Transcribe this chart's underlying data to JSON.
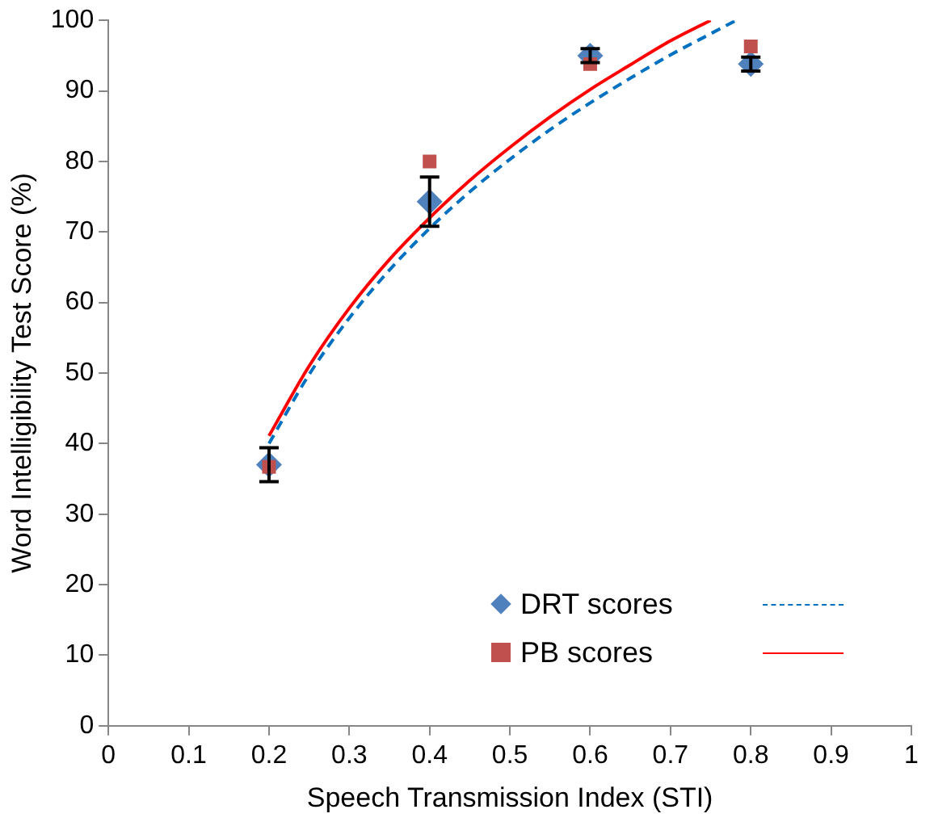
{
  "chart_data": {
    "type": "scatter",
    "xlabel": "Speech Transmission Index (STI)",
    "ylabel": "Word Intelligibility Test Score (%)",
    "xlim": [
      0,
      1
    ],
    "xticks": [
      0,
      0.1,
      0.2,
      0.3,
      0.4,
      0.5,
      0.6,
      0.7,
      0.8,
      0.9,
      1
    ],
    "ylim": [
      0,
      100
    ],
    "yticks": [
      0,
      10,
      20,
      30,
      40,
      50,
      60,
      70,
      80,
      90,
      100
    ],
    "grid": false,
    "legend": "bottom right",
    "series": [
      {
        "name": "DRT scores",
        "marker": "diamond",
        "color": "#4f81bd",
        "x": [
          0.2,
          0.4,
          0.6,
          0.8
        ],
        "values": [
          37,
          74.3,
          95,
          93.8
        ],
        "errors": [
          2.4,
          3.5,
          1,
          1
        ]
      },
      {
        "name": "PB scores",
        "marker": "square",
        "color": "#c0504d",
        "x": [
          0.2,
          0.4,
          0.6,
          0.8
        ],
        "values": [
          36.7,
          80,
          93.8,
          96.3
        ]
      },
      {
        "type": "line",
        "line_style": "dashed",
        "marker": "none",
        "color": "#0070c0",
        "x": [
          0.2,
          0.25,
          0.3,
          0.35,
          0.4,
          0.45,
          0.5,
          0.55,
          0.6,
          0.65,
          0.7,
          0.75,
          0.78
        ],
        "values": [
          40,
          49.8,
          57.8,
          64.6,
          70.5,
          75.7,
          80.3,
          84.5,
          88.3,
          91.8,
          95.1,
          98.1,
          99.9
        ]
      },
      {
        "type": "line",
        "line_style": "solid",
        "marker": "none",
        "color": "#ff0000",
        "x": [
          0.2,
          0.25,
          0.3,
          0.35,
          0.4,
          0.45,
          0.5,
          0.55,
          0.6,
          0.65,
          0.7,
          0.75
        ],
        "values": [
          41.1,
          51,
          59.2,
          66.1,
          72,
          77.3,
          82,
          86.3,
          90.2,
          93.7,
          97.1,
          100
        ]
      }
    ]
  }
}
